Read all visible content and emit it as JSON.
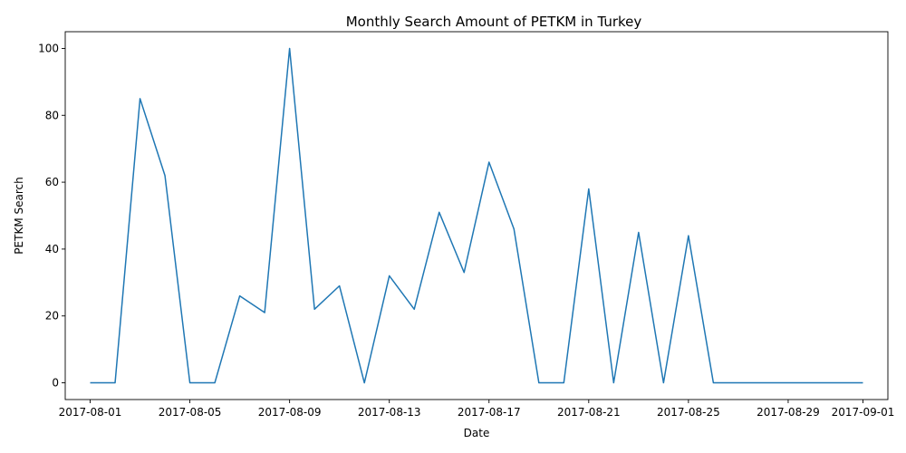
{
  "chart_data": {
    "type": "line",
    "title": "Monthly Search Amount of PETKM in Turkey",
    "xlabel": "Date",
    "ylabel": "PETKM Search",
    "x": [
      "2017-08-01",
      "2017-08-02",
      "2017-08-03",
      "2017-08-04",
      "2017-08-05",
      "2017-08-06",
      "2017-08-07",
      "2017-08-08",
      "2017-08-09",
      "2017-08-10",
      "2017-08-11",
      "2017-08-12",
      "2017-08-13",
      "2017-08-14",
      "2017-08-15",
      "2017-08-16",
      "2017-08-17",
      "2017-08-18",
      "2017-08-19",
      "2017-08-20",
      "2017-08-21",
      "2017-08-22",
      "2017-08-23",
      "2017-08-24",
      "2017-08-25",
      "2017-08-26",
      "2017-08-27",
      "2017-08-28",
      "2017-08-29",
      "2017-08-30",
      "2017-08-31",
      "2017-09-01"
    ],
    "series": [
      {
        "values": [
          0,
          0,
          85,
          62,
          0,
          0,
          26,
          21,
          100,
          22,
          29,
          0,
          32,
          22,
          51,
          33,
          66,
          46,
          0,
          0,
          58,
          0,
          45,
          0,
          44,
          0,
          0,
          0,
          0,
          0,
          0,
          0
        ],
        "color": "#1f77b4"
      }
    ],
    "x_ticks": [
      "2017-08-01",
      "2017-08-05",
      "2017-08-09",
      "2017-08-13",
      "2017-08-17",
      "2017-08-21",
      "2017-08-25",
      "2017-08-29",
      "2017-09-01"
    ],
    "y_ticks": [
      0,
      20,
      40,
      60,
      80,
      100
    ],
    "ylim": [
      -5,
      105
    ],
    "xlim": [
      "2017-07-31",
      "2017-09-02"
    ],
    "grid": false,
    "legend": "none"
  }
}
